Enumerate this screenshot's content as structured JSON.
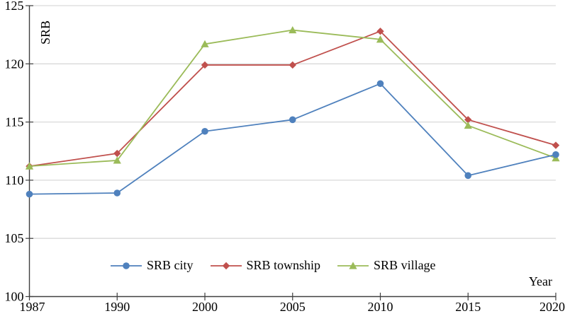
{
  "chart_data": {
    "type": "line",
    "title": "",
    "xlabel": "Year",
    "ylabel": "SRB",
    "ylim": [
      100,
      125
    ],
    "yticks": [
      100,
      105,
      110,
      115,
      120,
      125
    ],
    "categories": [
      "1987",
      "1990",
      "2000",
      "2005",
      "2010",
      "2015",
      "2020"
    ],
    "series": [
      {
        "name": "SRB city",
        "color": "#4F81BD",
        "marker": "circle",
        "values": [
          108.8,
          108.9,
          114.2,
          115.2,
          118.3,
          110.4,
          112.2
        ]
      },
      {
        "name": "SRB township",
        "color": "#C0504D",
        "marker": "diamond",
        "values": [
          111.2,
          112.3,
          119.9,
          119.9,
          122.8,
          115.2,
          113.0
        ]
      },
      {
        "name": "SRB village",
        "color": "#9BBB59",
        "marker": "triangle",
        "values": [
          111.2,
          111.7,
          121.7,
          122.9,
          122.1,
          114.7,
          111.9
        ]
      }
    ],
    "grid": true,
    "legend_position": "bottom-inside",
    "draw_order": [
      "SRB township",
      "SRB village",
      "SRB city"
    ],
    "colors": {
      "axis": "#404040",
      "gridline": "#D9D9D9",
      "text": "#000000",
      "background": "#FFFFFF"
    }
  }
}
